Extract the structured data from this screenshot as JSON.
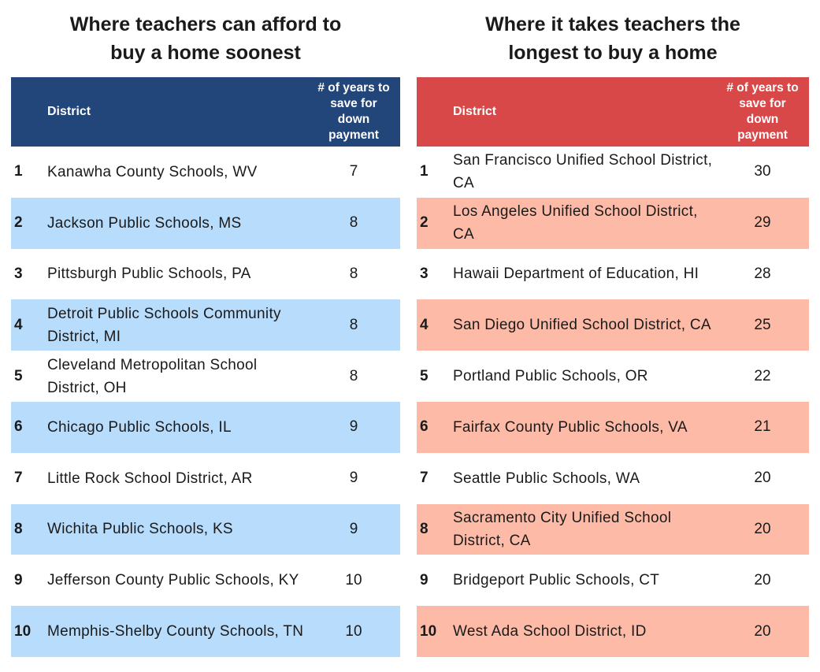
{
  "chart_data": [
    {
      "type": "table",
      "title_lines": [
        "Where teachers can afford to",
        "buy a home soonest"
      ],
      "columns": [
        "",
        "District",
        "# of years to save for down payment"
      ],
      "header_years_lines": [
        "# of years to",
        "save for",
        "down",
        "payment"
      ],
      "header_district": "District",
      "header_color": "#22457a",
      "stripe_color": "#b8dcfb",
      "rows": [
        {
          "rank": "1",
          "district": "Kanawha County Schools, WV",
          "years": 7
        },
        {
          "rank": "2",
          "district": "Jackson Public Schools, MS",
          "years": 8
        },
        {
          "rank": "3",
          "district": "Pittsburgh Public Schools, PA",
          "years": 8
        },
        {
          "rank": "4",
          "district": "Detroit Public Schools Community District, MI",
          "years": 8
        },
        {
          "rank": "5",
          "district": "Cleveland Metropolitan School District, OH",
          "years": 8
        },
        {
          "rank": "6",
          "district": "Chicago Public Schools, IL",
          "years": 9
        },
        {
          "rank": "7",
          "district": "Little Rock School District, AR",
          "years": 9
        },
        {
          "rank": "8",
          "district": "Wichita Public Schools, KS",
          "years": 9
        },
        {
          "rank": "9",
          "district": "Jefferson County Public Schools, KY",
          "years": 10
        },
        {
          "rank": "10",
          "district": "Memphis-Shelby County Schools, TN",
          "years": 10
        }
      ]
    },
    {
      "type": "table",
      "title_lines": [
        "Where it takes teachers the",
        "longest to buy a home"
      ],
      "columns": [
        "",
        "District",
        "# of years to save for down payment"
      ],
      "header_years_lines": [
        "# of years to",
        "save for",
        "down",
        "payment"
      ],
      "header_district": "District",
      "header_color": "#d94848",
      "stripe_color": "#fdbba7",
      "rows": [
        {
          "rank": "1",
          "district": "San Francisco Unified School District, CA",
          "years": 30
        },
        {
          "rank": "2",
          "district": "Los Angeles Unified School District, CA",
          "years": 29
        },
        {
          "rank": "3",
          "district": "Hawaii Department of Education, HI",
          "years": 28
        },
        {
          "rank": "4",
          "district": "San Diego Unified School District, CA",
          "years": 25
        },
        {
          "rank": "5",
          "district": "Portland Public Schools, OR",
          "years": 22
        },
        {
          "rank": "6",
          "district": "Fairfax County Public Schools, VA",
          "years": 21
        },
        {
          "rank": "7",
          "district": "Seattle Public Schools, WA",
          "years": 20
        },
        {
          "rank": "8",
          "district": "Sacramento City Unified School District, CA",
          "years": 20
        },
        {
          "rank": "9",
          "district": "Bridgeport Public Schools, CT",
          "years": 20
        },
        {
          "rank": "10",
          "district": "West Ada School District, ID",
          "years": 20
        }
      ]
    }
  ]
}
